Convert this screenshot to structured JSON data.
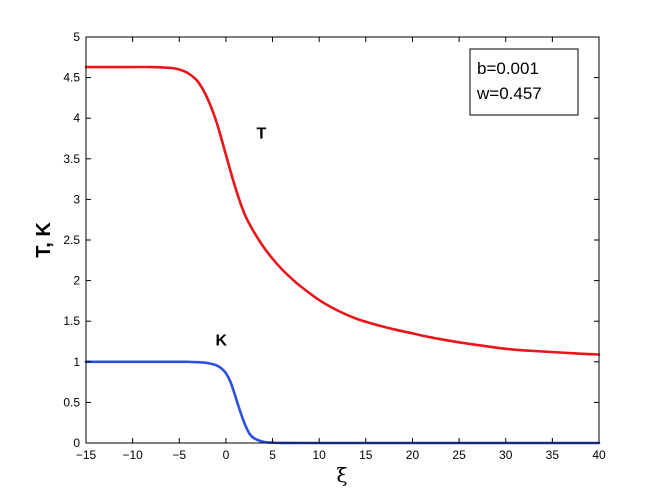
{
  "chart_data": {
    "type": "line",
    "title": "",
    "xlabel": "ξ",
    "ylabel": "T, K",
    "xlim": [
      -15,
      40
    ],
    "ylim": [
      0,
      5
    ],
    "xticks": [
      -15,
      -10,
      -5,
      0,
      5,
      10,
      15,
      20,
      25,
      30,
      35,
      40
    ],
    "xtick_labels": [
      "−15",
      "−10",
      "−5",
      "0",
      "5",
      "10",
      "15",
      "20",
      "25",
      "30",
      "35",
      "40"
    ],
    "yticks": [
      0,
      0.5,
      1,
      1.5,
      2,
      2.5,
      3,
      3.5,
      4,
      4.5,
      5
    ],
    "ytick_labels": [
      "0",
      "0.5",
      "1",
      "1.5",
      "2",
      "2.5",
      "3",
      "3.5",
      "4",
      "4.5",
      "5"
    ],
    "grid": false,
    "annotation_lines": [
      "b=0.001",
      "w=0.457"
    ],
    "series": [
      {
        "name": "T",
        "color": "#e8151b",
        "label_at": [
          3.8,
          3.75
        ],
        "x": [
          -15,
          -10,
          -8,
          -6,
          -5,
          -4,
          -3,
          -2,
          -1,
          0,
          1,
          2,
          3,
          4,
          5,
          6,
          7,
          8,
          10,
          12,
          14,
          16,
          18,
          20,
          22,
          25,
          28,
          30,
          32,
          35,
          38,
          40
        ],
        "y": [
          4.63,
          4.63,
          4.63,
          4.62,
          4.6,
          4.55,
          4.45,
          4.25,
          3.95,
          3.55,
          3.15,
          2.82,
          2.6,
          2.42,
          2.27,
          2.14,
          2.03,
          1.93,
          1.76,
          1.63,
          1.53,
          1.46,
          1.4,
          1.35,
          1.3,
          1.24,
          1.19,
          1.16,
          1.14,
          1.12,
          1.1,
          1.09
        ]
      },
      {
        "name": "K",
        "color": "#2b4fe0",
        "label_at": [
          -0.5,
          1.2
        ],
        "x": [
          -15,
          -10,
          -5,
          -4,
          -3,
          -2,
          -1,
          -0.5,
          0,
          0.5,
          1,
          1.5,
          2,
          2.5,
          3,
          4,
          5,
          6,
          10,
          20,
          30,
          40
        ],
        "y": [
          1.0,
          1.0,
          1.0,
          0.999,
          0.995,
          0.985,
          0.955,
          0.92,
          0.86,
          0.75,
          0.58,
          0.4,
          0.24,
          0.12,
          0.06,
          0.015,
          0.004,
          0.001,
          0.0,
          0.0,
          0.0,
          0.0
        ]
      }
    ]
  }
}
